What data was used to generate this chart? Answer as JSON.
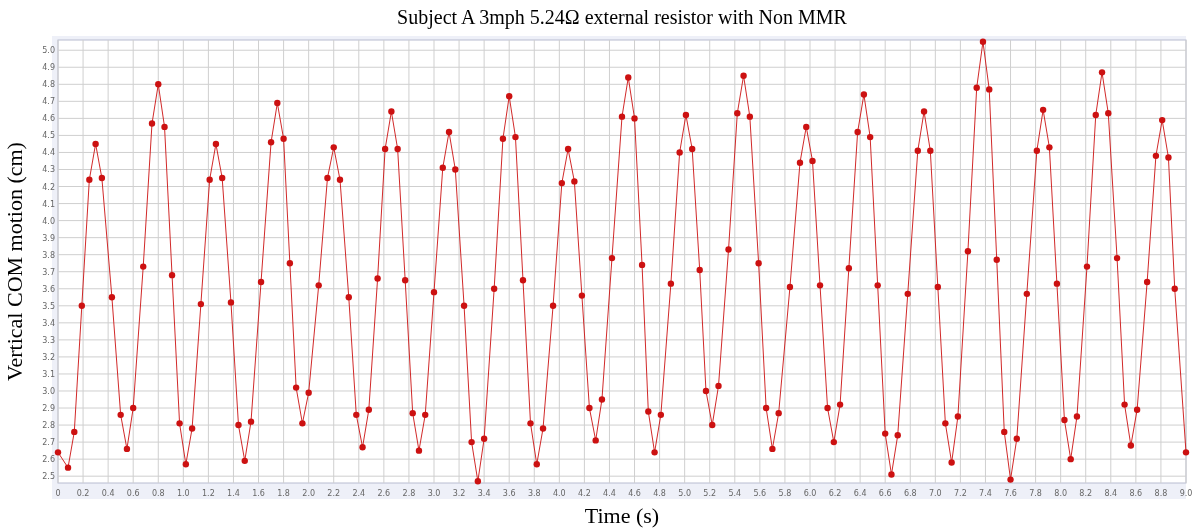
{
  "chart_data": {
    "type": "line",
    "title": "Subject A 3mph 5.24Ω external resistor with Non MMR",
    "xlabel": "Time (s)",
    "ylabel": "Vertical COM motion (cm)",
    "xlim": [
      0,
      9.0
    ],
    "ylim": [
      2.46,
      5.06
    ],
    "xticks": [
      0,
      {
        "value": 0.2,
        "label": "0.2"
      },
      {
        "value": 0.4,
        "label": "0.4"
      },
      {
        "value": 0.6,
        "label": "0.6"
      },
      {
        "value": 0.8,
        "label": "0.8"
      },
      {
        "value": 1,
        "label": "1.0"
      },
      {
        "value": 1.2,
        "label": "1.2"
      },
      {
        "value": 1.4,
        "label": "1.4"
      },
      {
        "value": 1.6,
        "label": "1.6"
      },
      {
        "value": 1.8,
        "label": "1.8"
      },
      {
        "value": 2,
        "label": "2.0"
      },
      {
        "value": 2.2,
        "label": "2.2"
      },
      {
        "value": 2.4,
        "label": "2.4"
      },
      {
        "value": 2.6,
        "label": "2.6"
      },
      {
        "value": 2.8,
        "label": "2.8"
      },
      {
        "value": 3,
        "label": "3.0"
      },
      {
        "value": 3.2,
        "label": "3.2"
      },
      {
        "value": 3.4,
        "label": "3.4"
      },
      {
        "value": 3.6,
        "label": "3.6"
      },
      {
        "value": 3.8,
        "label": "3.8"
      },
      {
        "value": 4,
        "label": "4.0"
      },
      {
        "value": 4.2,
        "label": "4.2"
      },
      {
        "value": 4.4,
        "label": "4.4"
      },
      {
        "value": 4.6,
        "label": "4.6"
      },
      {
        "value": 4.8,
        "label": "4.8"
      },
      {
        "value": 5,
        "label": "5.0"
      },
      {
        "value": 5.2,
        "label": "5.2"
      },
      {
        "value": 5.4,
        "label": "5.4"
      },
      {
        "value": 5.6,
        "label": "5.6"
      },
      {
        "value": 5.8,
        "label": "5.8"
      },
      {
        "value": 6,
        "label": "6.0"
      },
      {
        "value": 6.2,
        "label": "6.2"
      },
      {
        "value": 6.4,
        "label": "6.4"
      },
      {
        "value": 6.6,
        "label": "6.6"
      },
      {
        "value": 6.8,
        "label": "6.8"
      },
      {
        "value": 7,
        "label": "7.0"
      },
      {
        "value": 7.2,
        "label": "7.2"
      },
      {
        "value": 7.4,
        "label": "7.4"
      },
      {
        "value": 7.6,
        "label": "7.6"
      },
      {
        "value": 7.8,
        "label": "7.8"
      },
      {
        "value": 8,
        "label": "8.0"
      },
      {
        "value": 8.2,
        "label": "8.2"
      },
      {
        "value": 8.4,
        "label": "8.4"
      },
      {
        "value": 8.6,
        "label": "8.6"
      },
      {
        "value": 8.8,
        "label": "8.8"
      },
      {
        "value": 9,
        "label": "9.0"
      }
    ],
    "yticks": [
      2.5,
      2.6,
      2.7,
      2.8,
      2.9,
      {
        "value": 3,
        "label": "3.0"
      },
      3.1,
      3.2,
      3.3,
      3.4,
      3.5,
      3.6,
      3.7,
      3.8,
      3.9,
      {
        "value": 4,
        "label": "4.0"
      },
      4.1,
      4.2,
      4.3,
      4.4,
      4.5,
      4.6,
      4.7,
      4.8,
      4.9,
      {
        "value": 5,
        "label": "5.0"
      }
    ],
    "grid": true,
    "marker": "circle",
    "line_style": "solid",
    "series": [
      {
        "color": "#cc1111",
        "x": [
          0,
          0.08,
          0.13,
          0.19,
          0.25,
          0.3,
          0.35,
          0.43,
          0.5,
          0.55,
          0.6,
          0.68,
          0.75,
          0.8,
          0.85,
          0.91,
          0.97,
          1.02,
          1.07,
          1.14,
          1.21,
          1.26,
          1.31,
          1.38,
          1.44,
          1.49,
          1.54,
          1.62,
          1.7,
          1.75,
          1.8,
          1.85,
          1.9,
          1.95,
          2.0,
          2.08,
          2.15,
          2.2,
          2.25,
          2.32,
          2.38,
          2.43,
          2.48,
          2.55,
          2.61,
          2.66,
          2.71,
          2.77,
          2.83,
          2.88,
          2.93,
          3.0,
          3.07,
          3.12,
          3.17,
          3.24,
          3.3,
          3.35,
          3.4,
          3.48,
          3.55,
          3.6,
          3.65,
          3.71,
          3.77,
          3.82,
          3.87,
          3.95,
          4.02,
          4.07,
          4.12,
          4.18,
          4.24,
          4.29,
          4.34,
          4.42,
          4.5,
          4.55,
          4.6,
          4.66,
          4.71,
          4.76,
          4.81,
          4.89,
          4.96,
          5.01,
          5.06,
          5.12,
          5.17,
          5.22,
          5.27,
          5.35,
          5.42,
          5.47,
          5.52,
          5.59,
          5.65,
          5.7,
          5.75,
          5.84,
          5.92,
          5.97,
          6.02,
          6.08,
          6.14,
          6.19,
          6.24,
          6.31,
          6.38,
          6.43,
          6.48,
          6.54,
          6.6,
          6.65,
          6.7,
          6.78,
          6.86,
          6.91,
          6.96,
          7.02,
          7.08,
          7.13,
          7.18,
          7.26,
          7.33,
          7.38,
          7.43,
          7.49,
          7.55,
          7.6,
          7.65,
          7.73,
          7.81,
          7.86,
          7.91,
          7.97,
          8.03,
          8.08,
          8.13,
          8.21,
          8.28,
          8.33,
          8.38,
          8.45,
          8.51,
          8.56,
          8.61,
          8.69,
          8.76,
          8.81,
          8.86,
          8.91,
          9.0
        ],
        "values": [
          2.64,
          2.55,
          2.76,
          3.5,
          4.24,
          4.45,
          4.25,
          3.55,
          2.86,
          2.66,
          2.9,
          3.73,
          4.57,
          4.8,
          4.55,
          3.68,
          2.81,
          2.57,
          2.78,
          3.51,
          4.24,
          4.45,
          4.25,
          3.52,
          2.8,
          2.59,
          2.82,
          3.64,
          4.46,
          4.69,
          4.48,
          3.75,
          3.02,
          2.81,
          2.99,
          3.62,
          4.25,
          4.43,
          4.24,
          3.55,
          2.86,
          2.67,
          2.89,
          3.66,
          4.42,
          4.64,
          4.42,
          3.65,
          2.87,
          2.65,
          2.86,
          3.58,
          4.31,
          4.52,
          4.3,
          3.5,
          2.7,
          2.47,
          2.72,
          3.6,
          4.48,
          4.73,
          4.49,
          3.65,
          2.81,
          2.57,
          2.78,
          3.5,
          4.22,
          4.42,
          4.23,
          3.56,
          2.9,
          2.71,
          2.95,
          3.78,
          4.61,
          4.84,
          4.6,
          3.74,
          2.88,
          2.64,
          2.86,
          3.63,
          4.4,
          4.62,
          4.42,
          3.71,
          3.0,
          2.8,
          3.03,
          3.83,
          4.63,
          4.85,
          4.61,
          3.75,
          2.9,
          2.66,
          2.87,
          3.61,
          4.34,
          4.55,
          4.35,
          3.62,
          2.9,
          2.7,
          2.92,
          3.72,
          4.52,
          4.74,
          4.49,
          3.62,
          2.75,
          2.51,
          2.74,
          3.57,
          4.41,
          4.64,
          4.41,
          3.61,
          2.81,
          2.58,
          2.85,
          3.82,
          4.78,
          5.05,
          4.77,
          3.77,
          2.76,
          2.48,
          2.72,
          3.57,
          4.41,
          4.65,
          4.43,
          3.63,
          2.83,
          2.6,
          2.85,
          3.73,
          4.62,
          4.87,
          4.63,
          3.78,
          2.92,
          2.68,
          2.89,
          3.64,
          4.38,
          4.59,
          4.37,
          3.6,
          2.64
        ]
      }
    ]
  }
}
